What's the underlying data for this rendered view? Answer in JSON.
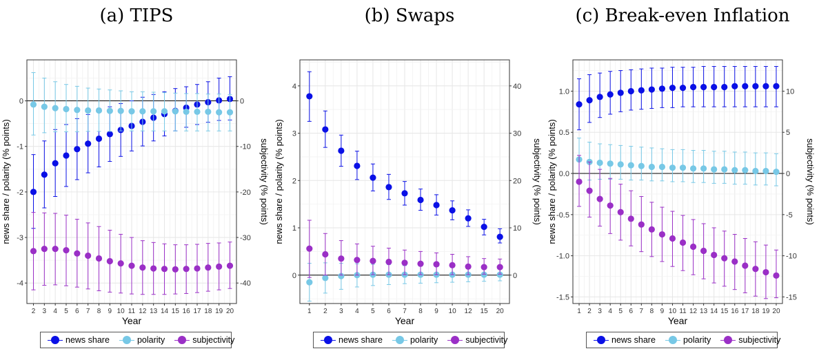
{
  "chart_data": [
    {
      "type": "scatter",
      "title": "(a) TIPS",
      "xlabel": "Year",
      "ylabel": "news share / polarity (% points)",
      "ylabel_right": "subjectivity (% points)",
      "categories": [
        "2",
        "3",
        "4",
        "5",
        "6",
        "7",
        "8",
        "9",
        "10",
        "11",
        "12",
        "13",
        "14",
        "15",
        "16",
        "17",
        "18",
        "19",
        "20"
      ],
      "ylim": [
        -4.45,
        0.9
      ],
      "y_ticks": [
        -4,
        -3,
        -2,
        -1,
        0
      ],
      "y_ticks_right": [
        -40,
        -30,
        -20,
        -10,
        0
      ],
      "right_scale": 10,
      "series": [
        {
          "name": "news share",
          "color": "#0a10e6",
          "axis": "left",
          "values": [
            -2.0,
            -1.62,
            -1.37,
            -1.2,
            -1.06,
            -0.94,
            -0.83,
            -0.73,
            -0.64,
            -0.55,
            -0.46,
            -0.37,
            -0.29,
            -0.22,
            -0.15,
            -0.08,
            -0.03,
            0.01,
            0.04
          ],
          "lower": [
            -2.8,
            -2.35,
            -2.1,
            -1.88,
            -1.73,
            -1.58,
            -1.45,
            -1.33,
            -1.22,
            -1.1,
            -0.99,
            -0.88,
            -0.77,
            -0.66,
            -0.58,
            -0.52,
            -0.47,
            -0.43,
            -0.42
          ],
          "upper": [
            -1.18,
            -0.88,
            -0.63,
            -0.52,
            -0.39,
            -0.3,
            -0.21,
            -0.13,
            -0.06,
            0.0,
            0.08,
            0.14,
            0.2,
            0.27,
            0.31,
            0.36,
            0.42,
            0.5,
            0.53
          ]
        },
        {
          "name": "polarity",
          "color": "#77c8e6",
          "axis": "left",
          "values": [
            -0.08,
            -0.13,
            -0.16,
            -0.18,
            -0.2,
            -0.21,
            -0.21,
            -0.22,
            -0.22,
            -0.23,
            -0.23,
            -0.23,
            -0.23,
            -0.23,
            -0.24,
            -0.24,
            -0.24,
            -0.25,
            -0.25
          ],
          "lower": [
            -0.75,
            -0.7,
            -0.68,
            -0.68,
            -0.68,
            -0.67,
            -0.67,
            -0.67,
            -0.66,
            -0.66,
            -0.66,
            -0.66,
            -0.66,
            -0.66,
            -0.66,
            -0.66,
            -0.66,
            -0.66,
            -0.66
          ],
          "upper": [
            0.62,
            0.5,
            0.42,
            0.36,
            0.32,
            0.28,
            0.26,
            0.24,
            0.22,
            0.2,
            0.2,
            0.19,
            0.18,
            0.17,
            0.16,
            0.16,
            0.15,
            0.15,
            0.14
          ]
        },
        {
          "name": "subjectivity",
          "color": "#9a2fc6",
          "axis": "right",
          "values": [
            -33.0,
            -32.5,
            -32.5,
            -32.8,
            -33.5,
            -34.0,
            -34.6,
            -35.2,
            -35.7,
            -36.2,
            -36.6,
            -36.8,
            -36.9,
            -37.0,
            -36.9,
            -36.8,
            -36.6,
            -36.4,
            -36.2
          ],
          "lower": [
            -41.5,
            -40.5,
            -40.4,
            -40.6,
            -40.9,
            -41.3,
            -41.7,
            -42.0,
            -42.2,
            -42.4,
            -42.5,
            -42.5,
            -42.5,
            -42.4,
            -42.3,
            -42.1,
            -41.8,
            -41.5,
            -41.2
          ],
          "upper": [
            -24.5,
            -24.6,
            -24.7,
            -25.1,
            -26.0,
            -26.8,
            -27.6,
            -28.4,
            -29.3,
            -30.0,
            -30.7,
            -31.1,
            -31.4,
            -31.6,
            -31.6,
            -31.5,
            -31.3,
            -31.2,
            -31.0
          ]
        }
      ]
    },
    {
      "type": "scatter",
      "title": "(b) Swaps",
      "xlabel": "Year",
      "ylabel": "news share / polarity (% points)",
      "ylabel_right": "subjectivity (% points)",
      "categories": [
        "1",
        "2",
        "3",
        "4",
        "5",
        "6",
        "7",
        "8",
        "9",
        "10",
        "12",
        "15",
        "20"
      ],
      "ylim": [
        -0.6,
        4.55
      ],
      "y_ticks": [
        0,
        1,
        2,
        3,
        4
      ],
      "y_ticks_right": [
        0,
        10,
        20,
        30,
        40
      ],
      "right_scale": 10,
      "series": [
        {
          "name": "news share",
          "color": "#0a10e6",
          "axis": "left",
          "values": [
            3.78,
            3.08,
            2.63,
            2.31,
            2.06,
            1.86,
            1.73,
            1.59,
            1.48,
            1.37,
            1.2,
            1.02,
            0.81
          ],
          "lower": [
            3.25,
            2.7,
            2.3,
            2.02,
            1.78,
            1.6,
            1.48,
            1.37,
            1.27,
            1.17,
            1.03,
            0.85,
            0.68
          ],
          "upper": [
            4.3,
            3.47,
            2.96,
            2.62,
            2.35,
            2.13,
            1.98,
            1.82,
            1.7,
            1.57,
            1.38,
            1.18,
            0.98
          ]
        },
        {
          "name": "polarity",
          "color": "#77c8e6",
          "axis": "left",
          "values": [
            -0.15,
            -0.06,
            -0.02,
            0.0,
            0.01,
            0.01,
            0.01,
            0.01,
            0.01,
            0.01,
            0.01,
            0.01,
            0.01
          ],
          "lower": [
            -0.55,
            -0.38,
            -0.3,
            -0.25,
            -0.22,
            -0.2,
            -0.18,
            -0.17,
            -0.16,
            -0.15,
            -0.14,
            -0.13,
            -0.12
          ],
          "upper": [
            0.25,
            0.26,
            0.25,
            0.24,
            0.23,
            0.22,
            0.2,
            0.19,
            0.18,
            0.17,
            0.16,
            0.15,
            0.14
          ]
        },
        {
          "name": "subjectivity",
          "color": "#9a2fc6",
          "axis": "right",
          "values": [
            5.6,
            4.4,
            3.5,
            3.2,
            3.0,
            2.8,
            2.6,
            2.4,
            2.3,
            2.1,
            1.8,
            1.7,
            1.7
          ],
          "lower": [
            -0.5,
            0.0,
            0.0,
            0.0,
            0.1,
            0.1,
            0.1,
            0.1,
            0.1,
            0.1,
            0.1,
            0.2,
            0.2
          ],
          "upper": [
            11.6,
            8.8,
            7.3,
            6.6,
            6.1,
            5.7,
            5.3,
            5.0,
            4.7,
            4.4,
            3.9,
            3.5,
            3.4
          ]
        }
      ]
    },
    {
      "type": "scatter",
      "title": "(c) Break-even Inflation",
      "xlabel": "Year",
      "ylabel": "news share / polarity (% points)",
      "ylabel_right": "subjectivity (% points)",
      "categories": [
        "1",
        "2",
        "3",
        "4",
        "5",
        "6",
        "7",
        "8",
        "9",
        "10",
        "11",
        "12",
        "13",
        "14",
        "15",
        "16",
        "17",
        "18",
        "19",
        "20"
      ],
      "ylim": [
        -1.58,
        1.38
      ],
      "y_ticks": [
        -1.5,
        -1.0,
        -0.5,
        0.0,
        0.5,
        1.0
      ],
      "y_ticks_right": [
        -15,
        -10,
        -5,
        0,
        5,
        10
      ],
      "right_scale": 10,
      "series": [
        {
          "name": "news share",
          "color": "#0a10e6",
          "axis": "left",
          "values": [
            0.84,
            0.89,
            0.93,
            0.96,
            0.98,
            1.0,
            1.01,
            1.02,
            1.03,
            1.04,
            1.04,
            1.05,
            1.05,
            1.05,
            1.05,
            1.06,
            1.06,
            1.06,
            1.06,
            1.06
          ],
          "lower": [
            0.53,
            0.62,
            0.68,
            0.72,
            0.75,
            0.77,
            0.78,
            0.79,
            0.8,
            0.8,
            0.81,
            0.81,
            0.81,
            0.81,
            0.81,
            0.81,
            0.81,
            0.81,
            0.81,
            0.81
          ],
          "upper": [
            1.15,
            1.2,
            1.22,
            1.24,
            1.25,
            1.26,
            1.27,
            1.28,
            1.28,
            1.29,
            1.29,
            1.29,
            1.3,
            1.3,
            1.3,
            1.3,
            1.3,
            1.3,
            1.3,
            1.3
          ]
        },
        {
          "name": "polarity",
          "color": "#77c8e6",
          "axis": "left",
          "values": [
            0.17,
            0.14,
            0.13,
            0.12,
            0.11,
            0.1,
            0.09,
            0.08,
            0.08,
            0.07,
            0.07,
            0.06,
            0.06,
            0.05,
            0.05,
            0.04,
            0.04,
            0.03,
            0.03,
            0.02
          ],
          "lower": [
            -0.1,
            -0.08,
            -0.07,
            -0.07,
            -0.07,
            -0.08,
            -0.08,
            -0.09,
            -0.09,
            -0.1,
            -0.1,
            -0.11,
            -0.11,
            -0.12,
            -0.12,
            -0.13,
            -0.13,
            -0.14,
            -0.14,
            -0.15
          ],
          "upper": [
            0.43,
            0.38,
            0.36,
            0.35,
            0.34,
            0.33,
            0.32,
            0.31,
            0.3,
            0.29,
            0.29,
            0.28,
            0.28,
            0.27,
            0.27,
            0.26,
            0.26,
            0.25,
            0.25,
            0.24
          ]
        },
        {
          "name": "subjectivity",
          "color": "#9a2fc6",
          "axis": "right",
          "values": [
            -1.0,
            -2.1,
            -3.1,
            -3.9,
            -4.7,
            -5.5,
            -6.2,
            -6.8,
            -7.4,
            -7.9,
            -8.4,
            -8.9,
            -9.4,
            -9.9,
            -10.3,
            -10.7,
            -11.2,
            -11.6,
            -12.0,
            -12.4
          ],
          "lower": [
            -4.0,
            -5.3,
            -6.4,
            -7.3,
            -8.1,
            -8.8,
            -9.5,
            -10.1,
            -10.7,
            -11.3,
            -11.8,
            -12.3,
            -12.8,
            -13.3,
            -13.7,
            -14.1,
            -14.5,
            -14.9,
            -15.2,
            -15.1
          ],
          "upper": [
            2.2,
            1.4,
            0.5,
            -0.6,
            -1.3,
            -2.1,
            -2.8,
            -3.5,
            -4.1,
            -4.6,
            -5.1,
            -5.6,
            -6.1,
            -6.6,
            -7.0,
            -7.4,
            -7.9,
            -8.3,
            -8.7,
            -9.3
          ]
        }
      ]
    }
  ],
  "legend": [
    {
      "label": "news share",
      "color": "#0a10e6"
    },
    {
      "label": "polarity",
      "color": "#77c8e6"
    },
    {
      "label": "subjectivity",
      "color": "#9a2fc6"
    }
  ]
}
